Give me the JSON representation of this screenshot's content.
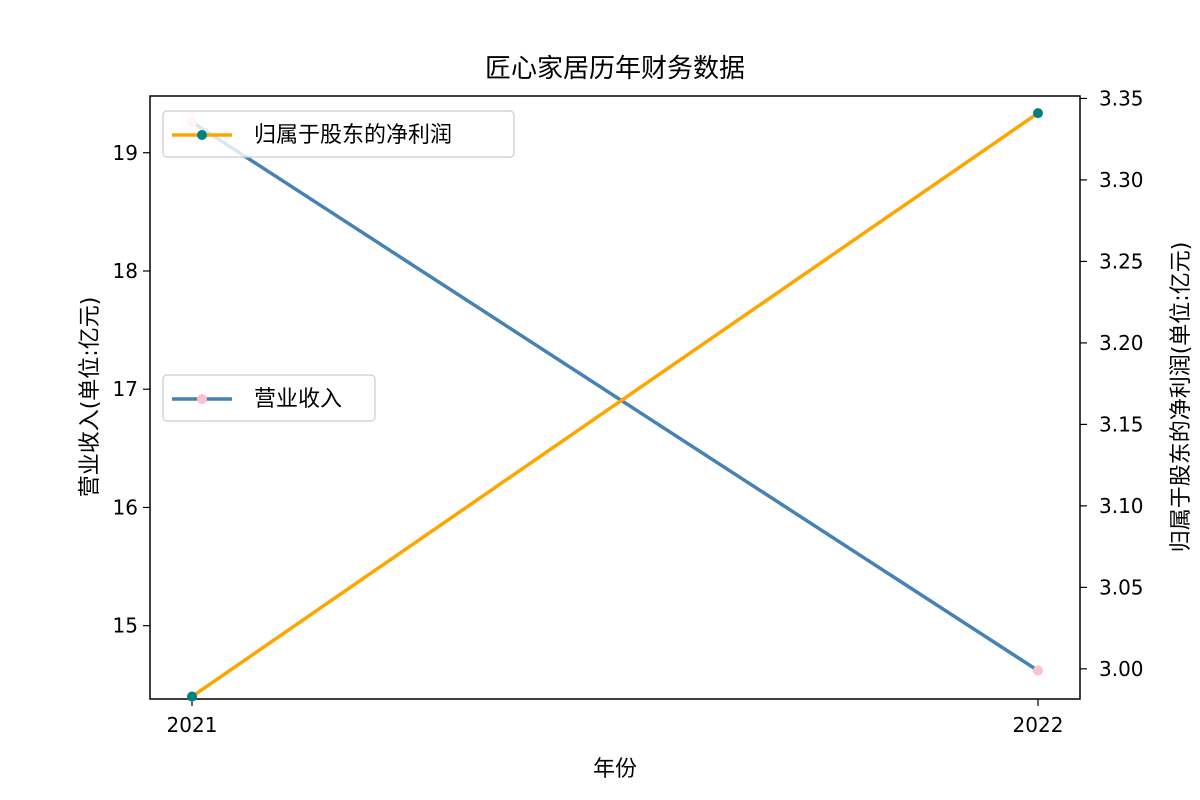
{
  "chart_data": {
    "type": "line",
    "title": "匠心家居历年财务数据",
    "xlabel": "年份",
    "ylabel_left": "营业收入(单位:亿元)",
    "ylabel_right": "归属于股东的净利润(单位:亿元)",
    "x": [
      "2021",
      "2022"
    ],
    "ylim_left": [
      14.38,
      19.48
    ],
    "ylim_right": [
      2.9815,
      3.3515
    ],
    "yticks_left": [
      15,
      16,
      17,
      18,
      19
    ],
    "yticks_right": [
      "3.00",
      "3.05",
      "3.10",
      "3.15",
      "3.20",
      "3.25",
      "3.30",
      "3.35"
    ],
    "grid": false,
    "series": [
      {
        "name": "营业收入",
        "axis": "left",
        "values": [
          19.26,
          14.62
        ],
        "line_color": "#4682b4",
        "marker_color": "#ffc0cb",
        "legend_position": "center-left"
      },
      {
        "name": "归属于股东的净利润",
        "axis": "right",
        "values": [
          2.983,
          3.341
        ],
        "line_color": "#ffa500",
        "marker_color": "#008080",
        "legend_position": "top-left"
      }
    ]
  }
}
